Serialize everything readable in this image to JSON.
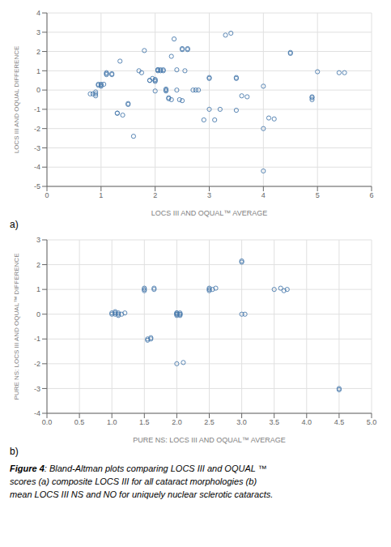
{
  "chart_data": [
    {
      "type": "scatter",
      "x": [
        0.8,
        0.85,
        0.9,
        0.9,
        0.9,
        0.95,
        0.95,
        1.0,
        1.0,
        1.0,
        1.05,
        1.1,
        1.1,
        1.1,
        1.2,
        1.2,
        1.3,
        1.3,
        1.35,
        1.4,
        1.5,
        1.5,
        1.6,
        1.7,
        1.75,
        1.8,
        1.9,
        1.9,
        1.95,
        2.0,
        2.0,
        2.0,
        2.0,
        2.05,
        2.05,
        2.05,
        2.1,
        2.1,
        2.15,
        2.15,
        2.2,
        2.2,
        2.2,
        2.25,
        2.25,
        2.3,
        2.3,
        2.35,
        2.4,
        2.4,
        2.45,
        2.5,
        2.5,
        2.5,
        2.55,
        2.6,
        2.6,
        2.7,
        2.75,
        2.8,
        2.9,
        3.0,
        3.0,
        3.0,
        3.1,
        3.2,
        3.3,
        3.4,
        3.5,
        3.5,
        3.5,
        3.6,
        3.7,
        4.0,
        4.0,
        4.0,
        4.1,
        4.2,
        4.5,
        4.5,
        4.9,
        4.9,
        4.9,
        5.0,
        5.4,
        5.5
      ],
      "values": [
        -0.2,
        -0.2,
        -0.3,
        -0.2,
        -0.1,
        0.25,
        0.3,
        0.2,
        0.25,
        0.3,
        0.3,
        0.9,
        0.85,
        0.8,
        0.8,
        0.85,
        -1.2,
        -1.2,
        1.5,
        -1.3,
        -0.7,
        -0.75,
        -2.4,
        1.0,
        0.9,
        2.05,
        0.5,
        0.5,
        0.6,
        0.55,
        0.5,
        0.45,
        -0.05,
        1.05,
        1.0,
        1.05,
        1.05,
        1.0,
        1.0,
        1.05,
        0.0,
        -0.05,
        0.05,
        -0.4,
        -0.45,
        -0.5,
        1.75,
        2.65,
        1.05,
        0.0,
        -0.5,
        -0.55,
        2.15,
        2.1,
        1.0,
        2.1,
        2.15,
        0.0,
        0.0,
        0.0,
        -1.55,
        0.65,
        0.6,
        -1.0,
        -1.55,
        -1.0,
        2.85,
        2.95,
        0.65,
        0.6,
        -1.05,
        -0.3,
        -0.35,
        0.2,
        -2.0,
        -4.2,
        -1.45,
        -1.5,
        1.95,
        1.9,
        -0.35,
        -0.4,
        -0.5,
        0.95,
        0.9,
        0.9
      ],
      "color": "#4a7aad",
      "marker": "circle",
      "x_label": "LOCS III AND OQUAL™ AVERAGE",
      "y_label": "LOCS III AND OQUAL DIFFERENCE",
      "xlim": [
        0,
        6
      ],
      "ylim": [
        -5,
        4
      ],
      "xticks": [
        0,
        1,
        2,
        3,
        4,
        5,
        6
      ],
      "yticks": [
        -5,
        -4,
        -3,
        -2,
        -1,
        0,
        1,
        2,
        3,
        4
      ],
      "grid": true,
      "annotations": [
        "a)"
      ]
    },
    {
      "type": "scatter",
      "x": [
        1.0,
        1.0,
        1.05,
        1.05,
        1.05,
        1.1,
        1.1,
        1.1,
        1.15,
        1.2,
        1.5,
        1.5,
        1.5,
        1.55,
        1.55,
        1.6,
        1.6,
        1.65,
        1.65,
        2.0,
        2.0,
        2.0,
        2.0,
        2.0,
        2.05,
        2.05,
        2.05,
        2.05,
        2.0,
        2.1,
        2.5,
        2.5,
        2.5,
        2.55,
        2.6,
        3.0,
        3.0,
        3.0,
        3.05,
        3.5,
        3.6,
        3.65,
        3.7,
        4.5,
        4.5
      ],
      "values": [
        0.0,
        0.05,
        0.0,
        0.05,
        0.1,
        0.0,
        0.05,
        -0.05,
        0.0,
        0.05,
        1.05,
        1.0,
        0.95,
        -1.0,
        -1.05,
        -0.95,
        -1.0,
        1.0,
        1.05,
        0.0,
        0.05,
        0.05,
        0.0,
        -0.05,
        0.0,
        0.05,
        -0.05,
        0.0,
        -2.0,
        -1.95,
        1.0,
        1.05,
        0.95,
        1.0,
        1.05,
        2.1,
        2.15,
        0.0,
        0.0,
        1.0,
        1.05,
        0.95,
        1.0,
        -3.0,
        -3.05
      ],
      "color": "#4a7aad",
      "marker": "circle",
      "x_label": "PURE NS: LOCS III AND OQUAL™ AVERAGE",
      "y_label": "PURE NS: LOCS III AND OQUAL™ DIFFERENCE",
      "xlim": [
        0,
        5
      ],
      "ylim": [
        -4,
        3
      ],
      "xticks": [
        {
          "value": 0,
          "label": "0.0"
        },
        {
          "value": 0.5,
          "label": "0.5"
        },
        {
          "value": 1,
          "label": "1.0"
        },
        {
          "value": 1.5,
          "label": "1.5"
        },
        {
          "value": 2,
          "label": "2.0"
        },
        {
          "value": 2.5,
          "label": "2.5"
        },
        {
          "value": 3,
          "label": "3.0"
        },
        {
          "value": 3.5,
          "label": "3.5"
        },
        {
          "value": 4,
          "label": "4.0"
        },
        {
          "value": 4.5,
          "label": "4.5"
        },
        {
          "value": 5,
          "label": "5.0"
        }
      ],
      "yticks": [
        -4,
        -3,
        -2,
        -1,
        0,
        1,
        2,
        3
      ],
      "grid": true,
      "annotations": [
        "b)",
        "Figure 4",
        ": Bland-Altman plots comparing LOCS III and OQUAL ™",
        "scores (a) composite LOCS III for all cataract morphologies (b)",
        "mean LOCS III NS and NO for uniquely nuclear sclerotic cataracts."
      ]
    }
  ]
}
